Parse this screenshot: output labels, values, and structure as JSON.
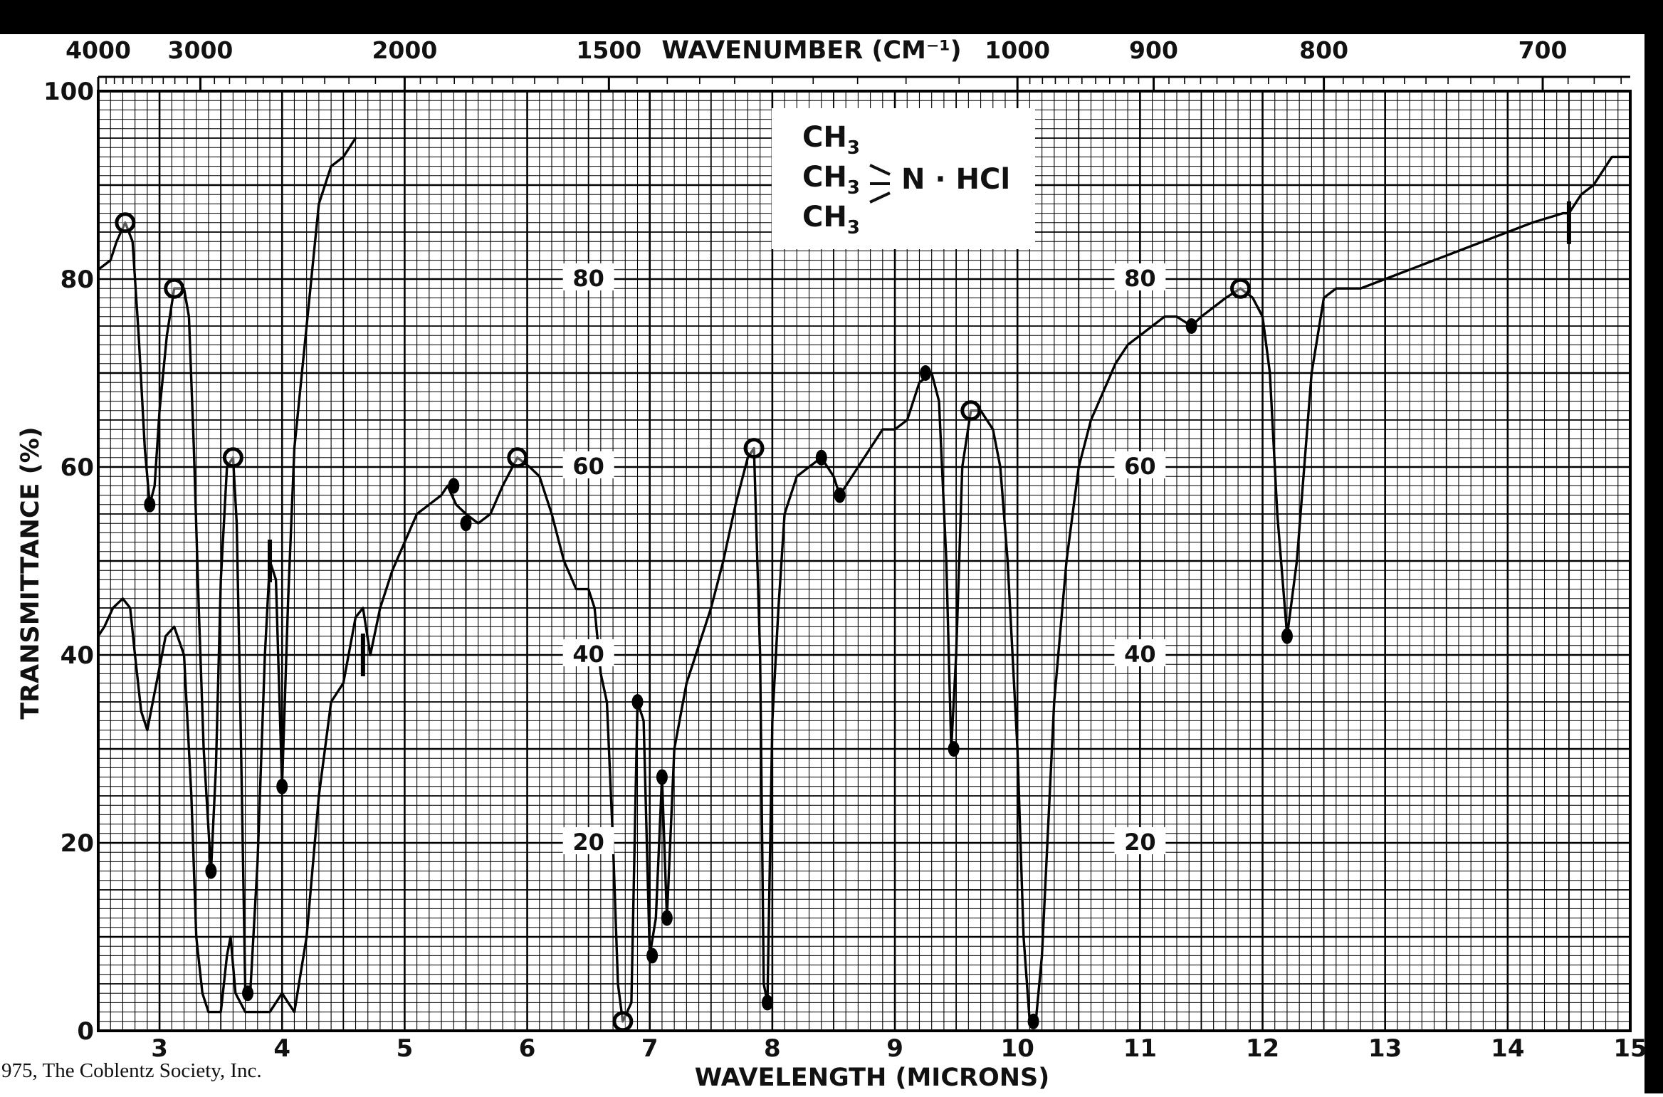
{
  "chart_data": {
    "type": "line",
    "title": "",
    "top_axis_label": "WAVENUMBER (CM⁻¹)",
    "top_axis_tick_labels": [
      {
        "label": "4000",
        "wavenumber": 4000
      },
      {
        "label": "3000",
        "wavenumber": 3000
      },
      {
        "label": "2000",
        "wavenumber": 2000
      },
      {
        "label": "1500",
        "wavenumber": 1500
      },
      {
        "label": "1000",
        "wavenumber": 1000
      },
      {
        "label": "900",
        "wavenumber": 900
      },
      {
        "label": "800",
        "wavenumber": 800
      },
      {
        "label": "700",
        "wavenumber": 700
      }
    ],
    "xlabel": "WAVELENGTH (MICRONS)",
    "ylabel": "TRANSMITTANCE (%)",
    "xlim": [
      2.5,
      15
    ],
    "ylim": [
      0,
      100
    ],
    "x_tick_labels": [
      {
        "label": "3",
        "value": 3
      },
      {
        "label": "4",
        "value": 4
      },
      {
        "label": "5",
        "value": 5
      },
      {
        "label": "6",
        "value": 6
      },
      {
        "label": "7",
        "value": 7
      },
      {
        "label": "8",
        "value": 8
      },
      {
        "label": "9",
        "value": 9
      },
      {
        "label": "10",
        "value": 10
      },
      {
        "label": "11",
        "value": 11
      },
      {
        "label": "12",
        "value": 12
      },
      {
        "label": "13",
        "value": 13
      },
      {
        "label": "14",
        "value": 14
      },
      {
        "label": "15",
        "value": 15
      }
    ],
    "y_tick_labels": [
      {
        "label": "0",
        "value": 0
      },
      {
        "label": "20",
        "value": 20
      },
      {
        "label": "40",
        "value": 40
      },
      {
        "label": "60",
        "value": 60
      },
      {
        "label": "80",
        "value": 80
      },
      {
        "label": "100",
        "value": 100
      }
    ],
    "inner_grid_labels": [
      {
        "label": "80",
        "x": 6.5,
        "y": 80
      },
      {
        "label": "60",
        "x": 6.5,
        "y": 60
      },
      {
        "label": "40",
        "x": 6.5,
        "y": 40
      },
      {
        "label": "20",
        "x": 6.5,
        "y": 20
      },
      {
        "label": "80",
        "x": 11,
        "y": 80
      },
      {
        "label": "60",
        "x": 11,
        "y": 60
      },
      {
        "label": "40",
        "x": 11,
        "y": 40
      },
      {
        "label": "20",
        "x": 11,
        "y": 20
      }
    ],
    "grid": true,
    "legend": "none",
    "structure_label": {
      "line1": "CH",
      "line2": "CH",
      "line3": "CH",
      "subscript": "3",
      "suffix": "N · HCl"
    },
    "credit": "975, The Coblentz Society, Inc.",
    "series": [
      {
        "values": [
          [
            2.5,
            81
          ],
          [
            2.6,
            82
          ],
          [
            2.65,
            84
          ],
          [
            2.72,
            86
          ],
          [
            2.78,
            84
          ],
          [
            2.83,
            74
          ],
          [
            2.88,
            62
          ],
          [
            2.92,
            56
          ],
          [
            2.96,
            58
          ],
          [
            3.0,
            66
          ],
          [
            3.06,
            74
          ],
          [
            3.12,
            79
          ],
          [
            3.2,
            79
          ],
          [
            3.24,
            76
          ],
          [
            3.28,
            62
          ],
          [
            3.32,
            45
          ],
          [
            3.36,
            30
          ],
          [
            3.42,
            17
          ],
          [
            3.46,
            28
          ],
          [
            3.5,
            48
          ],
          [
            3.55,
            60
          ],
          [
            3.6,
            61
          ],
          [
            3.63,
            54
          ],
          [
            3.66,
            34
          ],
          [
            3.7,
            4
          ],
          [
            3.74,
            4
          ],
          [
            3.8,
            18
          ],
          [
            3.86,
            40
          ],
          [
            3.9,
            50
          ],
          [
            3.95,
            48
          ],
          [
            4.0,
            26
          ],
          [
            4.05,
            46
          ],
          [
            4.1,
            62
          ],
          [
            4.2,
            75
          ],
          [
            4.3,
            88
          ],
          [
            4.4,
            92
          ],
          [
            4.5,
            93
          ],
          [
            4.6,
            95
          ]
        ]
      },
      {
        "values": [
          [
            2.5,
            42
          ],
          [
            2.55,
            43
          ],
          [
            2.62,
            45
          ],
          [
            2.7,
            46
          ],
          [
            2.76,
            45
          ],
          [
            2.8,
            40
          ],
          [
            2.85,
            34
          ],
          [
            2.9,
            32
          ],
          [
            2.96,
            36
          ],
          [
            3.05,
            42
          ],
          [
            3.12,
            43
          ],
          [
            3.2,
            40
          ],
          [
            3.26,
            25
          ],
          [
            3.3,
            10
          ],
          [
            3.35,
            4
          ],
          [
            3.4,
            2
          ],
          [
            3.5,
            2
          ],
          [
            3.55,
            8
          ],
          [
            3.58,
            10
          ],
          [
            3.62,
            4
          ],
          [
            3.7,
            2
          ],
          [
            3.8,
            2
          ],
          [
            3.9,
            2
          ],
          [
            3.95,
            3
          ],
          [
            4.0,
            4
          ],
          [
            4.05,
            3
          ],
          [
            4.1,
            2
          ],
          [
            4.2,
            10
          ],
          [
            4.3,
            25
          ],
          [
            4.4,
            35
          ],
          [
            4.5,
            37
          ],
          [
            4.6,
            44
          ],
          [
            4.66,
            45
          ],
          [
            4.72,
            40
          ],
          [
            4.8,
            45
          ],
          [
            4.9,
            49
          ],
          [
            5.0,
            52
          ],
          [
            5.1,
            55
          ],
          [
            5.2,
            56
          ],
          [
            5.3,
            57
          ],
          [
            5.35,
            58
          ],
          [
            5.42,
            56
          ],
          [
            5.5,
            55
          ],
          [
            5.6,
            54
          ],
          [
            5.7,
            55
          ],
          [
            5.8,
            58
          ],
          [
            5.92,
            61
          ],
          [
            6.02,
            60
          ],
          [
            6.1,
            59
          ],
          [
            6.2,
            55
          ],
          [
            6.3,
            50
          ],
          [
            6.4,
            47
          ],
          [
            6.5,
            47
          ],
          [
            6.55,
            45
          ],
          [
            6.6,
            38
          ],
          [
            6.65,
            35
          ],
          [
            6.7,
            20
          ],
          [
            6.74,
            5
          ],
          [
            6.78,
            1
          ],
          [
            6.85,
            3
          ],
          [
            6.9,
            35
          ],
          [
            6.95,
            33
          ],
          [
            7.0,
            8
          ],
          [
            7.05,
            12
          ],
          [
            7.1,
            27
          ],
          [
            7.14,
            12
          ],
          [
            7.2,
            30
          ],
          [
            7.3,
            37
          ],
          [
            7.4,
            41
          ],
          [
            7.5,
            45
          ],
          [
            7.6,
            50
          ],
          [
            7.7,
            56
          ],
          [
            7.8,
            61
          ],
          [
            7.85,
            62
          ],
          [
            7.9,
            40
          ],
          [
            7.93,
            5
          ],
          [
            7.96,
            3
          ],
          [
            8.0,
            33
          ],
          [
            8.05,
            45
          ],
          [
            8.1,
            55
          ],
          [
            8.2,
            59
          ],
          [
            8.3,
            60
          ],
          [
            8.4,
            61
          ],
          [
            8.5,
            59
          ],
          [
            8.55,
            57
          ],
          [
            8.6,
            58
          ],
          [
            8.7,
            60
          ],
          [
            8.8,
            62
          ],
          [
            8.9,
            64
          ],
          [
            9.0,
            64
          ],
          [
            9.1,
            65
          ],
          [
            9.2,
            69
          ],
          [
            9.3,
            70
          ],
          [
            9.36,
            67
          ],
          [
            9.42,
            50
          ],
          [
            9.46,
            30
          ],
          [
            9.5,
            40
          ],
          [
            9.55,
            60
          ],
          [
            9.62,
            66
          ],
          [
            9.7,
            66
          ],
          [
            9.8,
            64
          ],
          [
            9.86,
            60
          ],
          [
            9.92,
            50
          ],
          [
            10.0,
            30
          ],
          [
            10.05,
            10
          ],
          [
            10.1,
            1
          ],
          [
            10.15,
            1
          ],
          [
            10.2,
            8
          ],
          [
            10.3,
            35
          ],
          [
            10.4,
            50
          ],
          [
            10.5,
            60
          ],
          [
            10.6,
            65
          ],
          [
            10.7,
            68
          ],
          [
            10.8,
            71
          ],
          [
            10.9,
            73
          ],
          [
            11.0,
            74
          ],
          [
            11.1,
            75
          ],
          [
            11.2,
            76
          ],
          [
            11.3,
            76
          ],
          [
            11.42,
            75
          ],
          [
            11.5,
            76
          ],
          [
            11.6,
            77
          ],
          [
            11.7,
            78
          ],
          [
            11.82,
            79
          ],
          [
            11.92,
            78
          ],
          [
            12.0,
            76
          ],
          [
            12.06,
            70
          ],
          [
            12.12,
            55
          ],
          [
            12.2,
            42
          ],
          [
            12.28,
            50
          ],
          [
            12.4,
            70
          ],
          [
            12.5,
            78
          ],
          [
            12.6,
            79
          ],
          [
            12.8,
            79
          ],
          [
            13.0,
            80
          ],
          [
            13.2,
            81
          ],
          [
            13.4,
            82
          ],
          [
            13.6,
            83
          ],
          [
            13.8,
            84
          ],
          [
            14.0,
            85
          ],
          [
            14.2,
            86
          ],
          [
            14.45,
            87
          ],
          [
            14.5,
            87
          ],
          [
            14.6,
            89
          ],
          [
            14.7,
            90
          ],
          [
            14.85,
            93
          ],
          [
            15.0,
            93
          ]
        ]
      }
    ],
    "circled_points": [
      [
        2.72,
        86
      ],
      [
        3.12,
        79
      ],
      [
        3.6,
        61
      ],
      [
        5.92,
        61
      ],
      [
        6.78,
        1
      ],
      [
        7.85,
        62
      ],
      [
        9.62,
        66
      ],
      [
        11.82,
        79
      ]
    ],
    "filled_points": [
      [
        2.92,
        56
      ],
      [
        3.42,
        17
      ],
      [
        3.72,
        4
      ],
      [
        4.0,
        26
      ],
      [
        5.4,
        58
      ],
      [
        5.5,
        54
      ],
      [
        6.9,
        35
      ],
      [
        7.02,
        8
      ],
      [
        7.1,
        27
      ],
      [
        7.14,
        12
      ],
      [
        7.96,
        3
      ],
      [
        8.4,
        61
      ],
      [
        8.55,
        57
      ],
      [
        9.25,
        70
      ],
      [
        9.48,
        30
      ],
      [
        10.13,
        1
      ],
      [
        11.42,
        75
      ],
      [
        12.2,
        42
      ]
    ],
    "marker_ticks": [
      [
        3.9,
        50
      ],
      [
        4.66,
        40
      ],
      [
        14.5,
        86
      ]
    ]
  }
}
